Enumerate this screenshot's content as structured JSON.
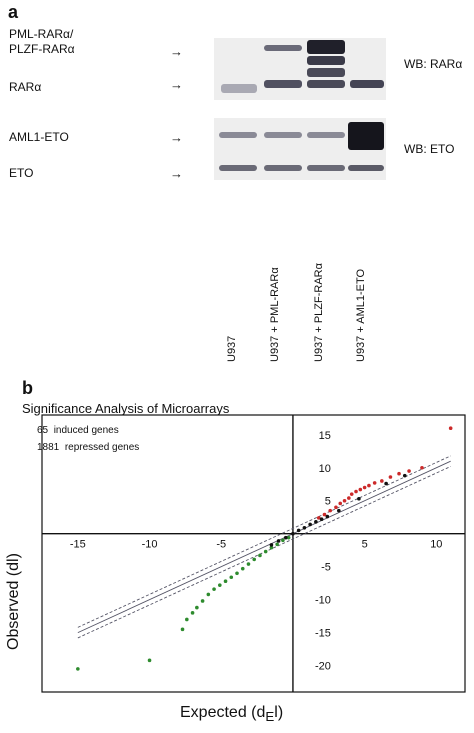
{
  "panel_a": {
    "letter": "a",
    "rows": [
      "PML-RARα/",
      "PLZF-RARα",
      "RARα",
      "AML1-ETO",
      "ETO"
    ],
    "wb_labels": [
      "WB: RARα",
      "WB: ETO"
    ],
    "arrow_glyph": "→",
    "lanes": [
      "U937",
      "U937 + PML-RARα",
      "U937 + PLZF-RARα",
      "U937 + AML1-ETO"
    ]
  },
  "panel_b": {
    "letter": "b",
    "legend": {
      "induced_count": "65",
      "induced_text": "induced genes",
      "repressed_count": "1881",
      "repressed_text": "repressed genes"
    },
    "colors": {
      "induced": "#cc2a2a",
      "repressed": "#2e8b2e",
      "neutral": "#111111",
      "band_lines": "#555566"
    }
  },
  "chart_data": {
    "type": "scatter",
    "title": "Significance Analysis of Microarrays",
    "xlabel": "Expected (d",
    "xlabel_sub": "E",
    "xlabel_end": "l)",
    "ylabel": "Observed (dl)",
    "x_ticks": [
      "-15",
      "-10",
      "-5",
      "5",
      "10"
    ],
    "y_ticks": [
      "15",
      "10",
      "5",
      "-5",
      "-10",
      "-15",
      "-20"
    ],
    "xlim": [
      -17.5,
      12
    ],
    "ylim": [
      -24,
      18
    ],
    "grid": false,
    "reference_lines": {
      "slope": 1.0,
      "offsets": [
        -0.8,
        0,
        0.8
      ]
    },
    "series": [
      {
        "name": "induced genes",
        "color": "#cc2a2a",
        "points": [
          [
            1.8,
            2.4
          ],
          [
            2.2,
            2.9
          ],
          [
            2.6,
            3.5
          ],
          [
            3.0,
            4.0
          ],
          [
            3.3,
            4.6
          ],
          [
            3.6,
            5.0
          ],
          [
            3.9,
            5.4
          ],
          [
            4.1,
            6.0
          ],
          [
            4.4,
            6.4
          ],
          [
            4.7,
            6.7
          ],
          [
            5.0,
            7.0
          ],
          [
            5.3,
            7.3
          ],
          [
            5.7,
            7.7
          ],
          [
            6.2,
            8.0
          ],
          [
            6.8,
            8.6
          ],
          [
            7.4,
            9.1
          ],
          [
            8.1,
            9.5
          ],
          [
            9.0,
            10.0
          ],
          [
            11.0,
            16.0
          ]
        ]
      },
      {
        "name": "repressed genes",
        "color": "#2e8b2e",
        "points": [
          [
            -0.3,
            -0.6
          ],
          [
            -0.7,
            -1.0
          ],
          [
            -1.1,
            -1.6
          ],
          [
            -1.5,
            -2.1
          ],
          [
            -1.9,
            -2.7
          ],
          [
            -2.3,
            -3.3
          ],
          [
            -2.7,
            -3.9
          ],
          [
            -3.1,
            -4.6
          ],
          [
            -3.5,
            -5.3
          ],
          [
            -3.9,
            -6.0
          ],
          [
            -4.3,
            -6.6
          ],
          [
            -4.7,
            -7.2
          ],
          [
            -5.1,
            -7.8
          ],
          [
            -5.5,
            -8.4
          ],
          [
            -5.9,
            -9.2
          ],
          [
            -6.3,
            -10.2
          ],
          [
            -6.7,
            -11.2
          ],
          [
            -7.0,
            -12.0
          ],
          [
            -7.4,
            -13.0
          ],
          [
            -7.7,
            -14.5
          ],
          [
            -10.0,
            -19.2
          ],
          [
            -15.0,
            -20.5
          ]
        ]
      },
      {
        "name": "",
        "color": "#111111",
        "points": [
          [
            -1.5,
            -1.7
          ],
          [
            -1.0,
            -1.1
          ],
          [
            -0.5,
            -0.6
          ],
          [
            0.0,
            0.0
          ],
          [
            0.4,
            0.5
          ],
          [
            0.8,
            0.9
          ],
          [
            1.2,
            1.4
          ],
          [
            1.6,
            1.8
          ],
          [
            2.0,
            2.2
          ],
          [
            2.4,
            2.6
          ],
          [
            3.2,
            3.5
          ],
          [
            4.6,
            5.3
          ],
          [
            6.5,
            7.6
          ],
          [
            7.8,
            8.8
          ]
        ]
      }
    ]
  }
}
